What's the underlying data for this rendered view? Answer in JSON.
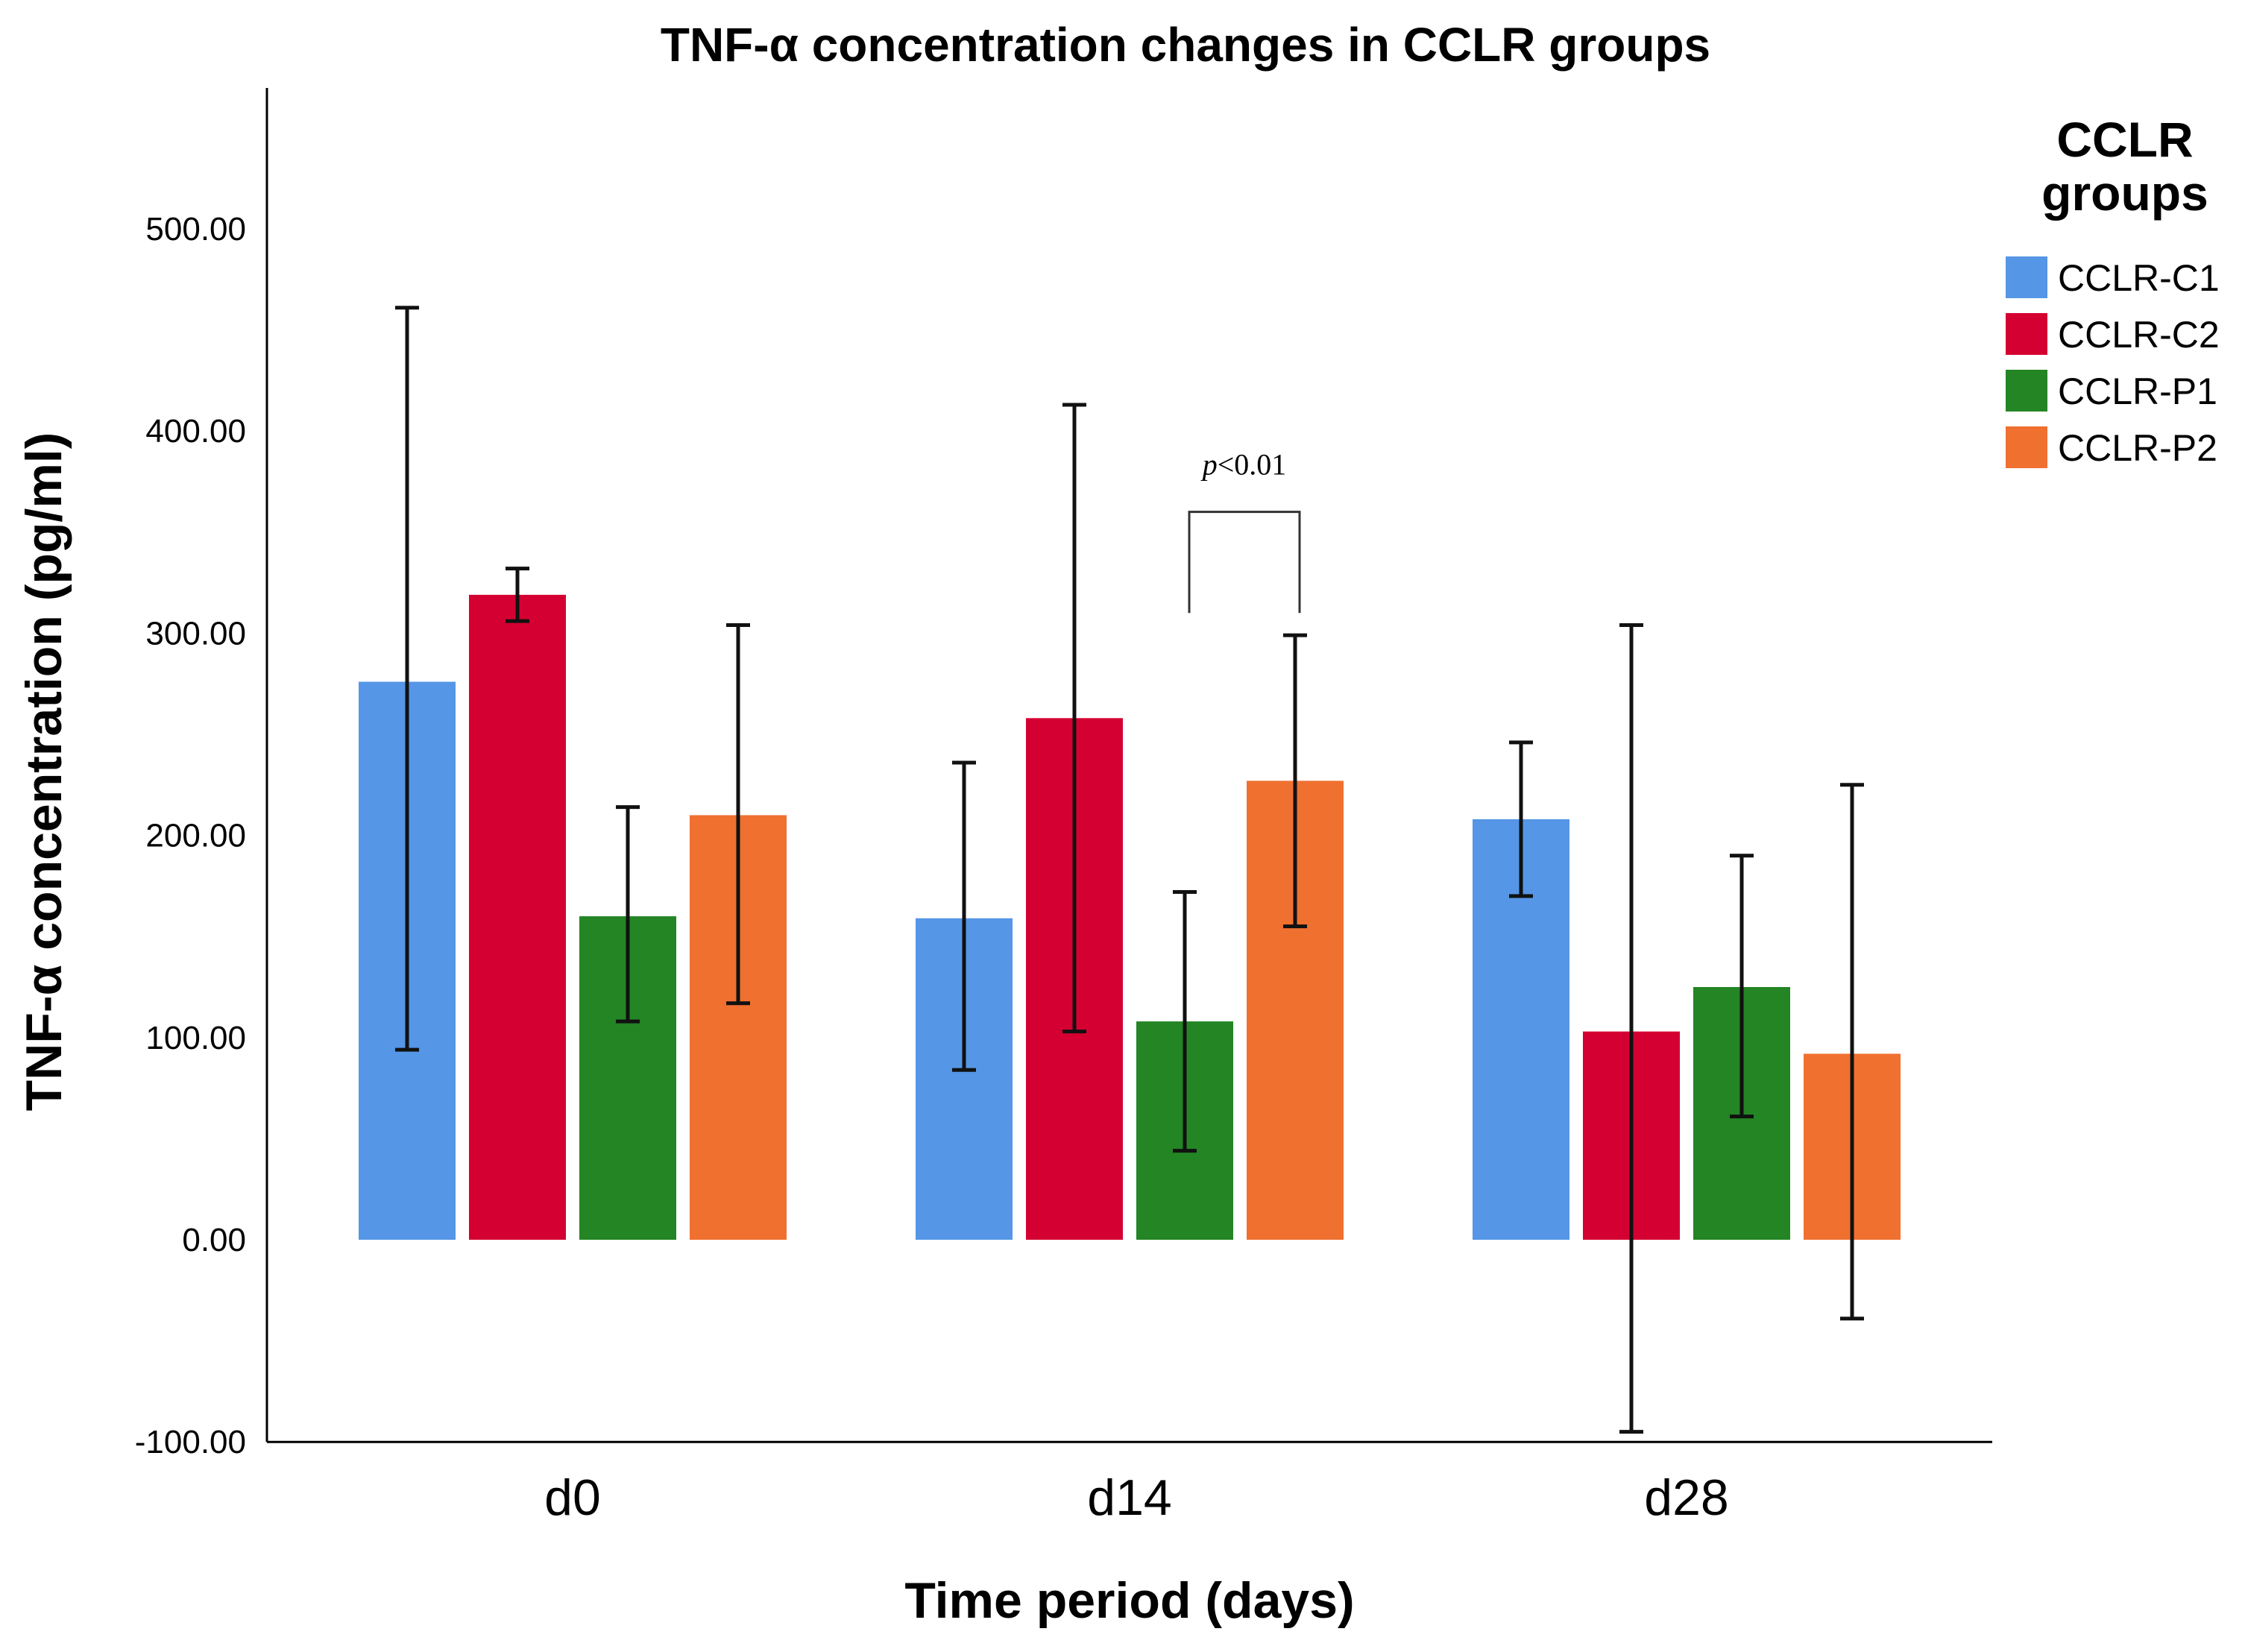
{
  "chart_data": {
    "type": "bar",
    "title": "TNF-α concentration changes in CCLR groups",
    "xlabel": "Time period (days)",
    "ylabel": "TNF-α concentration (pg/ml)",
    "ylim": [
      -100,
      570
    ],
    "yticks": [
      -100,
      0,
      100,
      200,
      300,
      400,
      500
    ],
    "ytick_labels": [
      "-100.00",
      "0.00",
      "100.00",
      "200.00",
      "300.00",
      "400.00",
      "500.00"
    ],
    "categories": [
      "d0",
      "d14",
      "d28"
    ],
    "legend_title_lines": [
      "CCLR",
      "groups"
    ],
    "legend_position": "top-right",
    "series": [
      {
        "name": "CCLR-C1",
        "color": "#5596e6",
        "values": [
          276,
          159,
          208
        ],
        "err_low": [
          94,
          84,
          170
        ],
        "err_high": [
          461,
          236,
          246
        ]
      },
      {
        "name": "CCLR-C2",
        "color": "#d50032",
        "values": [
          319,
          258,
          103
        ],
        "err_low": [
          306,
          103,
          -95
        ],
        "err_high": [
          332,
          413,
          304
        ]
      },
      {
        "name": "CCLR-P1",
        "color": "#238524",
        "values": [
          160,
          108,
          125
        ],
        "err_low": [
          108,
          44,
          61
        ],
        "err_high": [
          214,
          172,
          190
        ]
      },
      {
        "name": "CCLR-P2",
        "color": "#f07030",
        "values": [
          210,
          227,
          92
        ],
        "err_low": [
          117,
          155,
          -39
        ],
        "err_high": [
          304,
          299,
          225
        ]
      }
    ],
    "annotations": [
      {
        "text_italic": "p",
        "text_rest": "<0.01",
        "category": "d14",
        "from_series": "CCLR-P1",
        "to_series": "CCLR-P2",
        "level": 360
      }
    ]
  }
}
